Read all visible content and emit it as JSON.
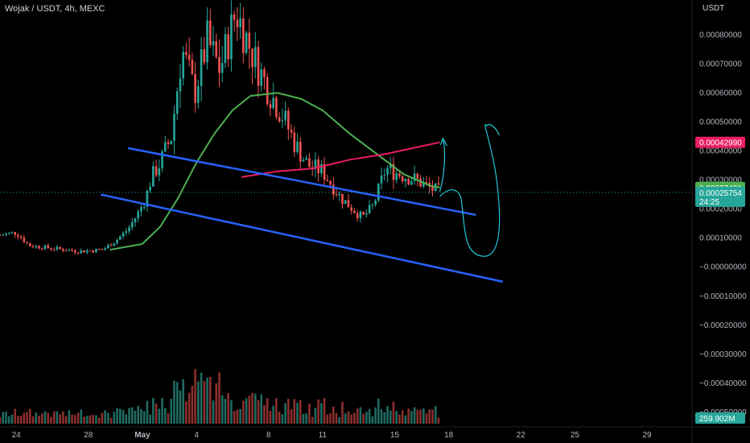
{
  "header": {
    "title": "Wojak / USDT, 4h, MEXC",
    "currency": "USDT"
  },
  "colors": {
    "background": "#000000",
    "up": "#26a69a",
    "down": "#ef5350",
    "channel": "#2962ff",
    "ma_fast": "#4caf50",
    "ma_slow": "#e91e63",
    "drawing": "#26c6da",
    "volume_up": "#1e6b61",
    "volume_down": "#8b2f2c"
  },
  "badges": {
    "ma_slow_value": "0.00042990",
    "ma_fast_value": "0.00027431",
    "last_price": "0.00025754",
    "countdown": "24:25",
    "volume_value": "259.902M"
  },
  "chart_data": {
    "type": "candlestick",
    "title": "Wojak / USDT, 4h, MEXC",
    "y_unit": "USDT",
    "ylim": [
      -0.00055,
      0.00092
    ],
    "yticks": [
      "0.00080000",
      "0.00070000",
      "0.00060000",
      "0.00050000",
      "0.00040000",
      "0.00030000",
      "0.00020000",
      "0.00010000",
      "−0.00000000",
      "−0.00010000",
      "−0.00020000",
      "−0.00030000",
      "−0.00040000",
      "−0.00050000"
    ],
    "ytick_values": [
      0.0008,
      0.0007,
      0.0006,
      0.0005,
      0.0004,
      0.0003,
      0.0002,
      0.0001,
      0.0,
      -0.0001,
      -0.0002,
      -0.0003,
      -0.0004,
      -0.0005
    ],
    "xticks": [
      "24",
      "28",
      "May",
      "4",
      "8",
      "11",
      "15",
      "18",
      "22",
      "25",
      "29"
    ],
    "xtick_days": [
      -7,
      -3,
      0,
      3,
      7,
      10,
      14,
      17,
      21,
      24,
      28
    ],
    "x_unit": "days since May 1",
    "xlim": [
      -7.9,
      30.5
    ],
    "last_candle_day": 16.5,
    "price_path": [
      [
        -7.9,
        0.00011
      ],
      [
        -7.0,
        0.00012
      ],
      [
        -6.3,
        7.5e-05
      ],
      [
        -5.0,
        6.5e-05
      ],
      [
        -3.5,
        5.5e-05
      ],
      [
        -2.2,
        6e-05
      ],
      [
        -1.5,
        9e-05
      ],
      [
        -0.8,
        0.00013
      ],
      [
        -0.2,
        0.00019
      ],
      [
        0.2,
        0.00024
      ],
      [
        0.5,
        0.00031
      ],
      [
        1.0,
        0.00036
      ],
      [
        1.6,
        0.00045
      ],
      [
        2.2,
        0.00075
      ],
      [
        2.9,
        0.0006
      ],
      [
        3.6,
        0.00078
      ],
      [
        4.3,
        0.00068
      ],
      [
        5.2,
        0.00088
      ],
      [
        6.2,
        0.00072
      ],
      [
        7.0,
        0.00061
      ],
      [
        7.8,
        0.00052
      ],
      [
        8.5,
        0.00042
      ],
      [
        9.2,
        0.00035
      ],
      [
        10.0,
        0.00033
      ],
      [
        11.0,
        0.00024
      ],
      [
        12.2,
        0.00017
      ],
      [
        12.8,
        0.00021
      ],
      [
        13.5,
        0.00034
      ],
      [
        14.3,
        0.00032
      ],
      [
        15.2,
        0.0003
      ],
      [
        16.0,
        0.00027
      ],
      [
        16.5,
        0.00026
      ]
    ],
    "ma_fast": [
      [
        -1.8,
        6e-05
      ],
      [
        0.0,
        8e-05
      ],
      [
        1.0,
        0.00014
      ],
      [
        2.0,
        0.00024
      ],
      [
        3.0,
        0.00036
      ],
      [
        4.0,
        0.00046
      ],
      [
        5.0,
        0.00054
      ],
      [
        6.0,
        0.00059
      ],
      [
        7.5,
        0.0006
      ],
      [
        8.8,
        0.00058
      ],
      [
        10.0,
        0.00054
      ],
      [
        11.5,
        0.00046
      ],
      [
        13.0,
        0.00039
      ],
      [
        14.5,
        0.00032
      ],
      [
        16.0,
        0.00028
      ],
      [
        16.5,
        0.000274
      ]
    ],
    "ma_slow": [
      [
        5.5,
        0.00031
      ],
      [
        7.5,
        0.00033
      ],
      [
        9.5,
        0.00034
      ],
      [
        11.5,
        0.00037
      ],
      [
        13.5,
        0.00039
      ],
      [
        15.0,
        0.00041
      ],
      [
        16.5,
        0.00043
      ]
    ],
    "channel_upper": [
      [
        -0.8,
        0.00041
      ],
      [
        18.5,
        0.00018
      ]
    ],
    "channel_lower": [
      [
        -2.3,
        0.00025
      ],
      [
        20.0,
        -5e-05
      ]
    ],
    "volume_scale_max": 1
  }
}
